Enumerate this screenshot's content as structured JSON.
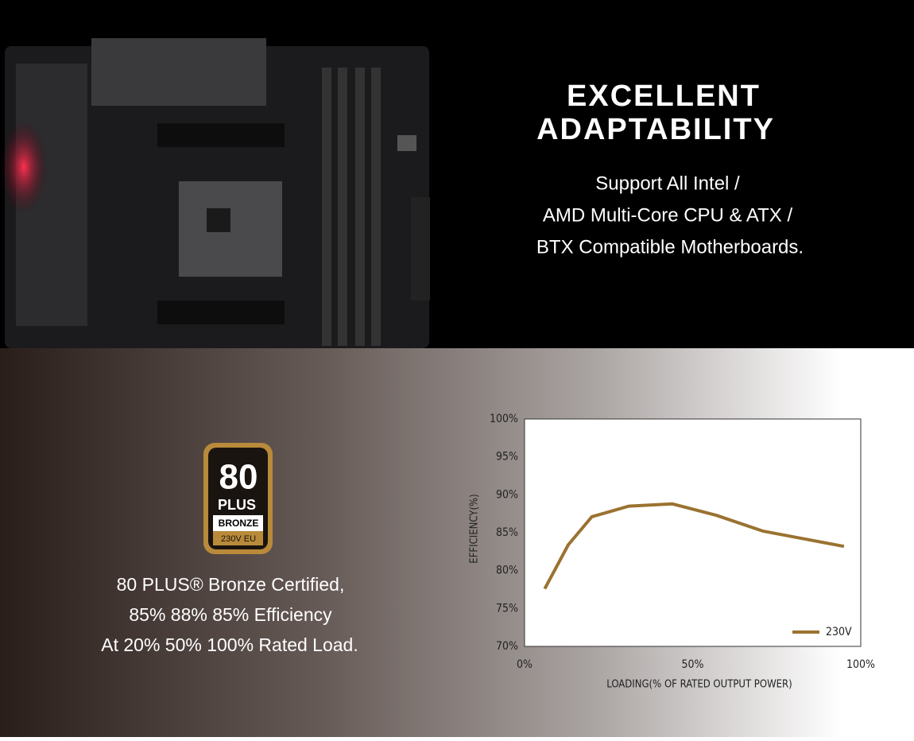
{
  "headline": [
    "EXCELLENT",
    "ADAPTABILITY"
  ],
  "support_text": [
    "Support All Intel /",
    "AMD Multi-Core CPU & ATX /",
    "BTX Compatible Motherboards."
  ],
  "badge": {
    "number": "80",
    "brand": "PLUS",
    "tier": "BRONZE",
    "region": "230V EU"
  },
  "certification_text": [
    "80 PLUS® Bronze Certified,",
    "85% 88% 85% Efficiency",
    "At 20% 50% 100% Rated Load."
  ],
  "chart_data": {
    "type": "line",
    "x_label": "LOADING(% OF RATED OUTPUT POWER)",
    "y_label": "EFFICIENCY(%)",
    "x": [
      6,
      13,
      20,
      31,
      44,
      57,
      71,
      95
    ],
    "series": [
      {
        "name": "230V",
        "color": "#9a7230",
        "values": [
          77.6,
          83.4,
          87.1,
          88.5,
          88.8,
          87.3,
          85.2,
          83.2
        ]
      }
    ],
    "xlim": [
      0,
      100
    ],
    "ylim": [
      70,
      100
    ],
    "xticks": [
      {
        "value": 0,
        "label": "0%"
      },
      {
        "value": 50,
        "label": "50%"
      },
      {
        "value": 100,
        "label": "100%"
      }
    ],
    "yticks": [
      {
        "value": 70,
        "label": "70%"
      },
      {
        "value": 75,
        "label": "75%"
      },
      {
        "value": 80,
        "label": "80%"
      },
      {
        "value": 85,
        "label": "85%"
      },
      {
        "value": 90,
        "label": "90%"
      },
      {
        "value": 95,
        "label": "95%"
      },
      {
        "value": 100,
        "label": "100%"
      }
    ],
    "grid": false,
    "legend": "lower right"
  }
}
